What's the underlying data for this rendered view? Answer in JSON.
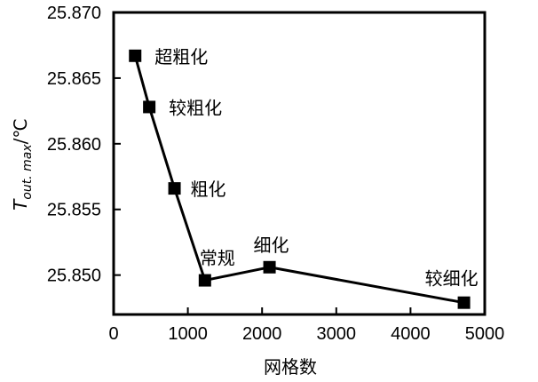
{
  "chart_data": {
    "type": "line",
    "title": "",
    "xlabel": "网格数",
    "ylabel": "T",
    "ylabel_sub": "out. max",
    "ylabel_unit": "/℃",
    "xlim": [
      0,
      5000
    ],
    "ylim": [
      25.847,
      25.87
    ],
    "xticks": [
      0,
      1000,
      2000,
      3000,
      4000,
      5000
    ],
    "yticks": [
      25.85,
      25.855,
      25.86,
      25.865,
      25.87
    ],
    "ytick_labels": [
      "25.850",
      "25.855",
      "25.860",
      "25.865",
      "25.870"
    ],
    "grid": false,
    "series": [
      {
        "marker": "square",
        "color": "#000000",
        "points": [
          {
            "x": 290,
            "y": 25.8667,
            "label": "超粗化"
          },
          {
            "x": 480,
            "y": 25.8628,
            "label": "较粗化"
          },
          {
            "x": 820,
            "y": 25.8566,
            "label": "粗化"
          },
          {
            "x": 1230,
            "y": 25.8496,
            "label": "常规"
          },
          {
            "x": 2100,
            "y": 25.8506,
            "label": "细化"
          },
          {
            "x": 4720,
            "y": 25.8479,
            "label": "较细化"
          }
        ]
      }
    ]
  }
}
